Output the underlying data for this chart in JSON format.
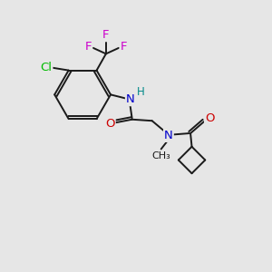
{
  "bg_color": "#e6e6e6",
  "bond_color": "#1a1a1a",
  "atom_colors": {
    "F": "#cc00cc",
    "Cl": "#00bb00",
    "N": "#0000cc",
    "H": "#008888",
    "O": "#cc0000"
  },
  "lw": 1.4
}
